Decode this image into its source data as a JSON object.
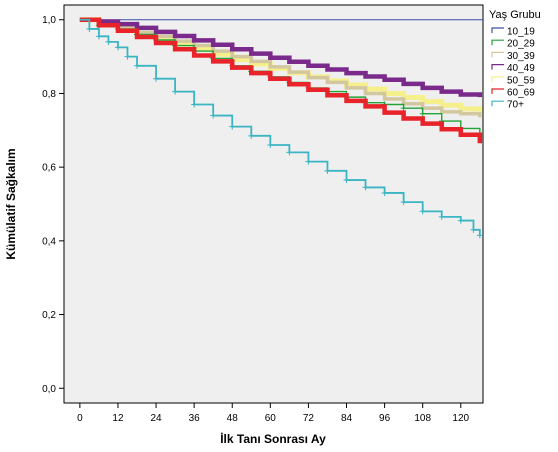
{
  "chart_data": {
    "type": "line",
    "xlabel": "İlk Tanı Sonrası Ay",
    "ylabel": "Kümülatif Sağkalım",
    "xlim": [
      -5,
      127
    ],
    "ylim": [
      -0.04,
      1.04
    ],
    "xticks": [
      0,
      12,
      24,
      36,
      48,
      60,
      72,
      84,
      96,
      108,
      120
    ],
    "xtick_labels": [
      "0",
      "12",
      "24",
      "36",
      "48",
      "60",
      "72",
      "84",
      "96",
      "108",
      "120"
    ],
    "yticks": [
      0.0,
      0.2,
      0.4,
      0.6,
      0.8,
      1.0
    ],
    "ytick_labels": [
      "0,0",
      "0,2",
      "0,4",
      "0,6",
      "0,8",
      "1,0"
    ],
    "grid": false,
    "background": "#efefef",
    "legend": {
      "title": "Yaş Grubu",
      "position": "right"
    },
    "series": [
      {
        "name": "10_19",
        "color": "#3d4fa8",
        "x": [
          0,
          127
        ],
        "y": [
          1.0,
          1.0
        ]
      },
      {
        "name": "20_29",
        "color": "#23a23a",
        "x": [
          0,
          6,
          12,
          18,
          24,
          30,
          36,
          42,
          48,
          54,
          60,
          66,
          72,
          78,
          84,
          90,
          96,
          102,
          108,
          114,
          120,
          126
        ],
        "y": [
          1.0,
          0.985,
          0.975,
          0.96,
          0.945,
          0.93,
          0.915,
          0.895,
          0.875,
          0.86,
          0.845,
          0.83,
          0.815,
          0.805,
          0.79,
          0.775,
          0.77,
          0.76,
          0.745,
          0.725,
          0.705,
          0.685
        ]
      },
      {
        "name": "30_39",
        "color": "#d3c7a0",
        "x": [
          0,
          6,
          12,
          18,
          24,
          30,
          36,
          42,
          48,
          54,
          60,
          66,
          72,
          78,
          84,
          90,
          96,
          102,
          108,
          114,
          120,
          126
        ],
        "y": [
          1.0,
          0.99,
          0.98,
          0.965,
          0.955,
          0.942,
          0.93,
          0.915,
          0.9,
          0.887,
          0.872,
          0.858,
          0.843,
          0.83,
          0.815,
          0.8,
          0.785,
          0.772,
          0.76,
          0.75,
          0.745,
          0.735
        ]
      },
      {
        "name": "40_49",
        "color": "#7a2a8a",
        "x": [
          0,
          6,
          12,
          18,
          24,
          30,
          36,
          42,
          48,
          54,
          60,
          66,
          72,
          78,
          84,
          90,
          96,
          102,
          108,
          114,
          120,
          126
        ],
        "y": [
          1.0,
          0.995,
          0.988,
          0.978,
          0.967,
          0.956,
          0.944,
          0.932,
          0.92,
          0.908,
          0.897,
          0.886,
          0.875,
          0.865,
          0.855,
          0.846,
          0.837,
          0.826,
          0.815,
          0.805,
          0.797,
          0.79
        ]
      },
      {
        "name": "50_59",
        "color": "#f5f08c",
        "x": [
          0,
          6,
          12,
          18,
          24,
          30,
          36,
          42,
          48,
          54,
          60,
          66,
          72,
          78,
          84,
          90,
          96,
          102,
          108,
          114,
          120,
          126
        ],
        "y": [
          1.0,
          0.99,
          0.978,
          0.963,
          0.948,
          0.934,
          0.92,
          0.906,
          0.892,
          0.88,
          0.868,
          0.856,
          0.845,
          0.834,
          0.823,
          0.812,
          0.8,
          0.789,
          0.778,
          0.768,
          0.758,
          0.75
        ]
      },
      {
        "name": "60_69",
        "color": "#e8232a",
        "x": [
          0,
          6,
          12,
          18,
          24,
          30,
          36,
          42,
          48,
          54,
          60,
          66,
          72,
          78,
          84,
          90,
          96,
          102,
          108,
          114,
          120,
          126
        ],
        "y": [
          1.0,
          0.985,
          0.97,
          0.953,
          0.937,
          0.92,
          0.903,
          0.887,
          0.87,
          0.855,
          0.84,
          0.825,
          0.81,
          0.795,
          0.78,
          0.765,
          0.748,
          0.732,
          0.718,
          0.703,
          0.688,
          0.665
        ]
      },
      {
        "name": "70+",
        "color": "#3ab5c3",
        "x": [
          0,
          3,
          6,
          9,
          12,
          15,
          18,
          24,
          30,
          36,
          42,
          48,
          54,
          60,
          66,
          72,
          78,
          84,
          90,
          96,
          102,
          108,
          114,
          120,
          124,
          126
        ],
        "y": [
          1.0,
          0.975,
          0.955,
          0.94,
          0.925,
          0.9,
          0.875,
          0.84,
          0.805,
          0.77,
          0.74,
          0.71,
          0.685,
          0.66,
          0.64,
          0.615,
          0.59,
          0.565,
          0.545,
          0.53,
          0.505,
          0.48,
          0.465,
          0.455,
          0.43,
          0.415
        ]
      }
    ]
  }
}
